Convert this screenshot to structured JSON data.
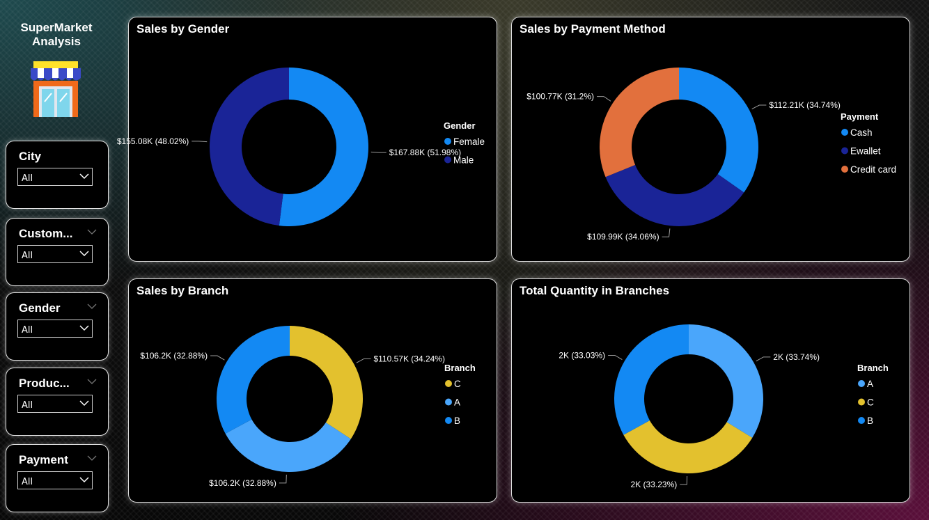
{
  "sidebar": {
    "title_line1": "SuperMarket",
    "title_line2": "Analysis",
    "slicers": [
      {
        "label": "City",
        "value": "All"
      },
      {
        "label": "Custom...",
        "value": "All"
      },
      {
        "label": "Gender",
        "value": "All"
      },
      {
        "label": "Produc...",
        "value": "All"
      },
      {
        "label": "Payment",
        "value": "All"
      }
    ]
  },
  "colors": {
    "light_blue": "#1389f3",
    "navy": "#1a2497",
    "orange": "#e2703d",
    "gold": "#e3c12e",
    "sky_blue": "#4aa6fb"
  },
  "chart_data": [
    {
      "id": "gender",
      "type": "donut",
      "title": "Sales by Gender",
      "legend_title": "Gender",
      "slices": [
        {
          "name": "Female",
          "value": 167.88,
          "label": "$167.88K (51.98%)",
          "color": "#1389f3"
        },
        {
          "name": "Male",
          "value": 155.08,
          "label": "$155.08K (48.02%)",
          "color": "#1a2497"
        }
      ]
    },
    {
      "id": "payment",
      "type": "donut",
      "title": "Sales by Payment Method",
      "legend_title": "Payment",
      "slices": [
        {
          "name": "Cash",
          "value": 112.21,
          "label": "$112.21K (34.74%)",
          "color": "#1389f3"
        },
        {
          "name": "Ewallet",
          "value": 109.99,
          "label": "$109.99K (34.06%)",
          "color": "#1a2497"
        },
        {
          "name": "Credit card",
          "value": 100.77,
          "label": "$100.77K (31.2%)",
          "color": "#e2703d"
        }
      ]
    },
    {
      "id": "branch",
      "type": "donut",
      "title": "Sales by Branch",
      "legend_title": "Branch",
      "slices": [
        {
          "name": "C",
          "value": 110.57,
          "label": "$110.57K (34.24%)",
          "color": "#e3c12e"
        },
        {
          "name": "A",
          "value": 106.2,
          "label": "$106.2K (32.88%)",
          "color": "#4aa6fb"
        },
        {
          "name": "B",
          "value": 106.2,
          "label": "$106.2K (32.88%)",
          "color": "#1389f3"
        }
      ]
    },
    {
      "id": "quantity",
      "type": "donut",
      "title": "Total Quantity in Branches",
      "legend_title": "Branch",
      "slices": [
        {
          "name": "A",
          "value": 33.74,
          "label": "2K (33.74%)",
          "color": "#4aa6fb"
        },
        {
          "name": "C",
          "value": 33.23,
          "label": "2K (33.23%)",
          "color": "#e3c12e"
        },
        {
          "name": "B",
          "value": 33.03,
          "label": "2K (33.03%)",
          "color": "#1389f3"
        }
      ]
    }
  ]
}
